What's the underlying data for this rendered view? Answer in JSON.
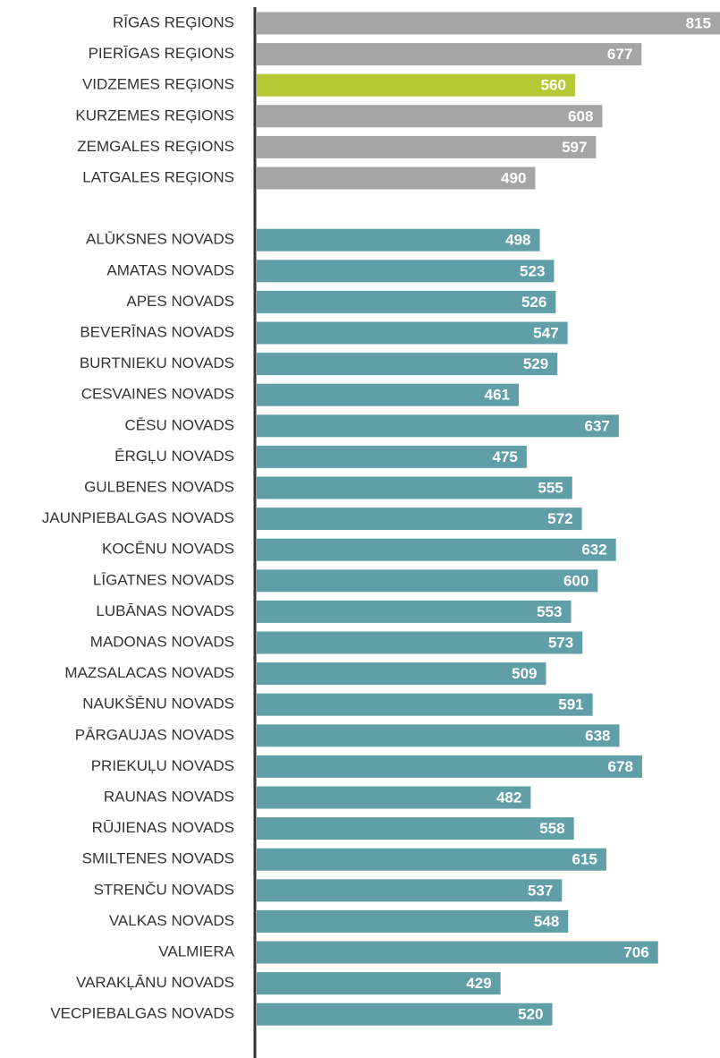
{
  "chart_data": {
    "type": "bar",
    "orientation": "horizontal",
    "categories": [
      "RĪGAS REĢIONS",
      "PIERĪGAS REĢIONS",
      "VIDZEMES REĢIONS",
      "KURZEMES REĢIONS",
      "ZEMGALES REĢIONS",
      "LATGALES REĢIONS",
      null,
      "ALŪKSNES NOVADS",
      "AMATAS NOVADS",
      "APES NOVADS",
      "BEVERĪNAS NOVADS",
      "BURTNIEKU NOVADS",
      "CESVAINES NOVADS",
      "CĒSU NOVADS",
      "ĒRGĻU NOVADS",
      "GULBENES NOVADS",
      "JAUNPIEBALGAS NOVADS",
      "KOCĒNU NOVADS",
      "LĪGATNES NOVADS",
      "LUBĀNAS NOVADS",
      "MADONAS NOVADS",
      "MAZSALACAS NOVADS",
      "NAUKŠĒNU NOVADS",
      "PĀRGAUJAS NOVADS",
      "PRIEKUĻU NOVADS",
      "RAUNAS NOVADS",
      "RŪJIENAS NOVADS",
      "SMILTENES NOVADS",
      "STRENČU NOVADS",
      "VALKAS NOVADS",
      "VALMIERA",
      "VARAKĻĀNU NOVADS",
      "VECPIEBALGAS NOVADS"
    ],
    "values": [
      815,
      677,
      560,
      608,
      597,
      490,
      null,
      498,
      523,
      526,
      547,
      529,
      461,
      637,
      475,
      555,
      572,
      632,
      600,
      553,
      573,
      509,
      591,
      638,
      678,
      482,
      558,
      615,
      537,
      548,
      706,
      429,
      520
    ],
    "colors": [
      "#a5a5a5",
      "#a5a5a5",
      "#b6c934",
      "#a5a5a5",
      "#a5a5a5",
      "#a5a5a5",
      null,
      "#609fa8",
      "#609fa8",
      "#609fa8",
      "#609fa8",
      "#609fa8",
      "#609fa8",
      "#609fa8",
      "#609fa8",
      "#609fa8",
      "#609fa8",
      "#609fa8",
      "#609fa8",
      "#609fa8",
      "#609fa8",
      "#609fa8",
      "#609fa8",
      "#609fa8",
      "#609fa8",
      "#609fa8",
      "#609fa8",
      "#609fa8",
      "#609fa8",
      "#609fa8",
      "#609fa8",
      "#609fa8",
      "#609fa8"
    ]
  }
}
